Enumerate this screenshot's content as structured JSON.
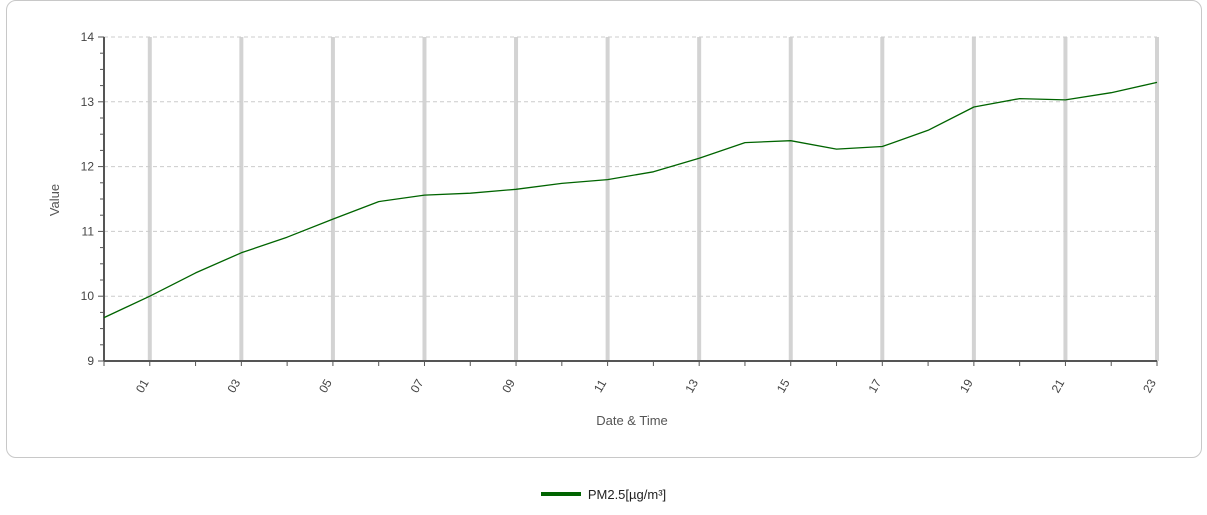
{
  "chart_data": {
    "type": "line",
    "title": "",
    "xlabel": "Date & Time",
    "ylabel": "Value",
    "ylim": [
      9,
      14
    ],
    "yticks": [
      "9",
      "10",
      "11",
      "12",
      "13",
      "14"
    ],
    "x": [
      0,
      1,
      2,
      3,
      4,
      5,
      6,
      7,
      8,
      9,
      10,
      11,
      12,
      13,
      14,
      15,
      16,
      17,
      18,
      19,
      20,
      21,
      22,
      23
    ],
    "xlim": [
      0,
      23
    ],
    "xtick_values": [
      1,
      3,
      5,
      7,
      9,
      11,
      13,
      15,
      17,
      19,
      21,
      23
    ],
    "xtick_labels": [
      "01",
      "03",
      "05",
      "07",
      "09",
      "11",
      "13",
      "15",
      "17",
      "19",
      "21",
      "23"
    ],
    "grid": true,
    "legend_position": "bottom-center",
    "series": [
      {
        "name": "PM2.5[µg/m³]",
        "color": "#006400",
        "values": [
          9.67,
          10.0,
          10.36,
          10.67,
          10.91,
          11.19,
          11.46,
          11.56,
          11.59,
          11.65,
          11.74,
          11.8,
          11.92,
          12.13,
          12.37,
          12.4,
          12.27,
          12.31,
          12.56,
          12.92,
          13.05,
          13.03,
          13.14,
          13.3
        ]
      }
    ]
  }
}
